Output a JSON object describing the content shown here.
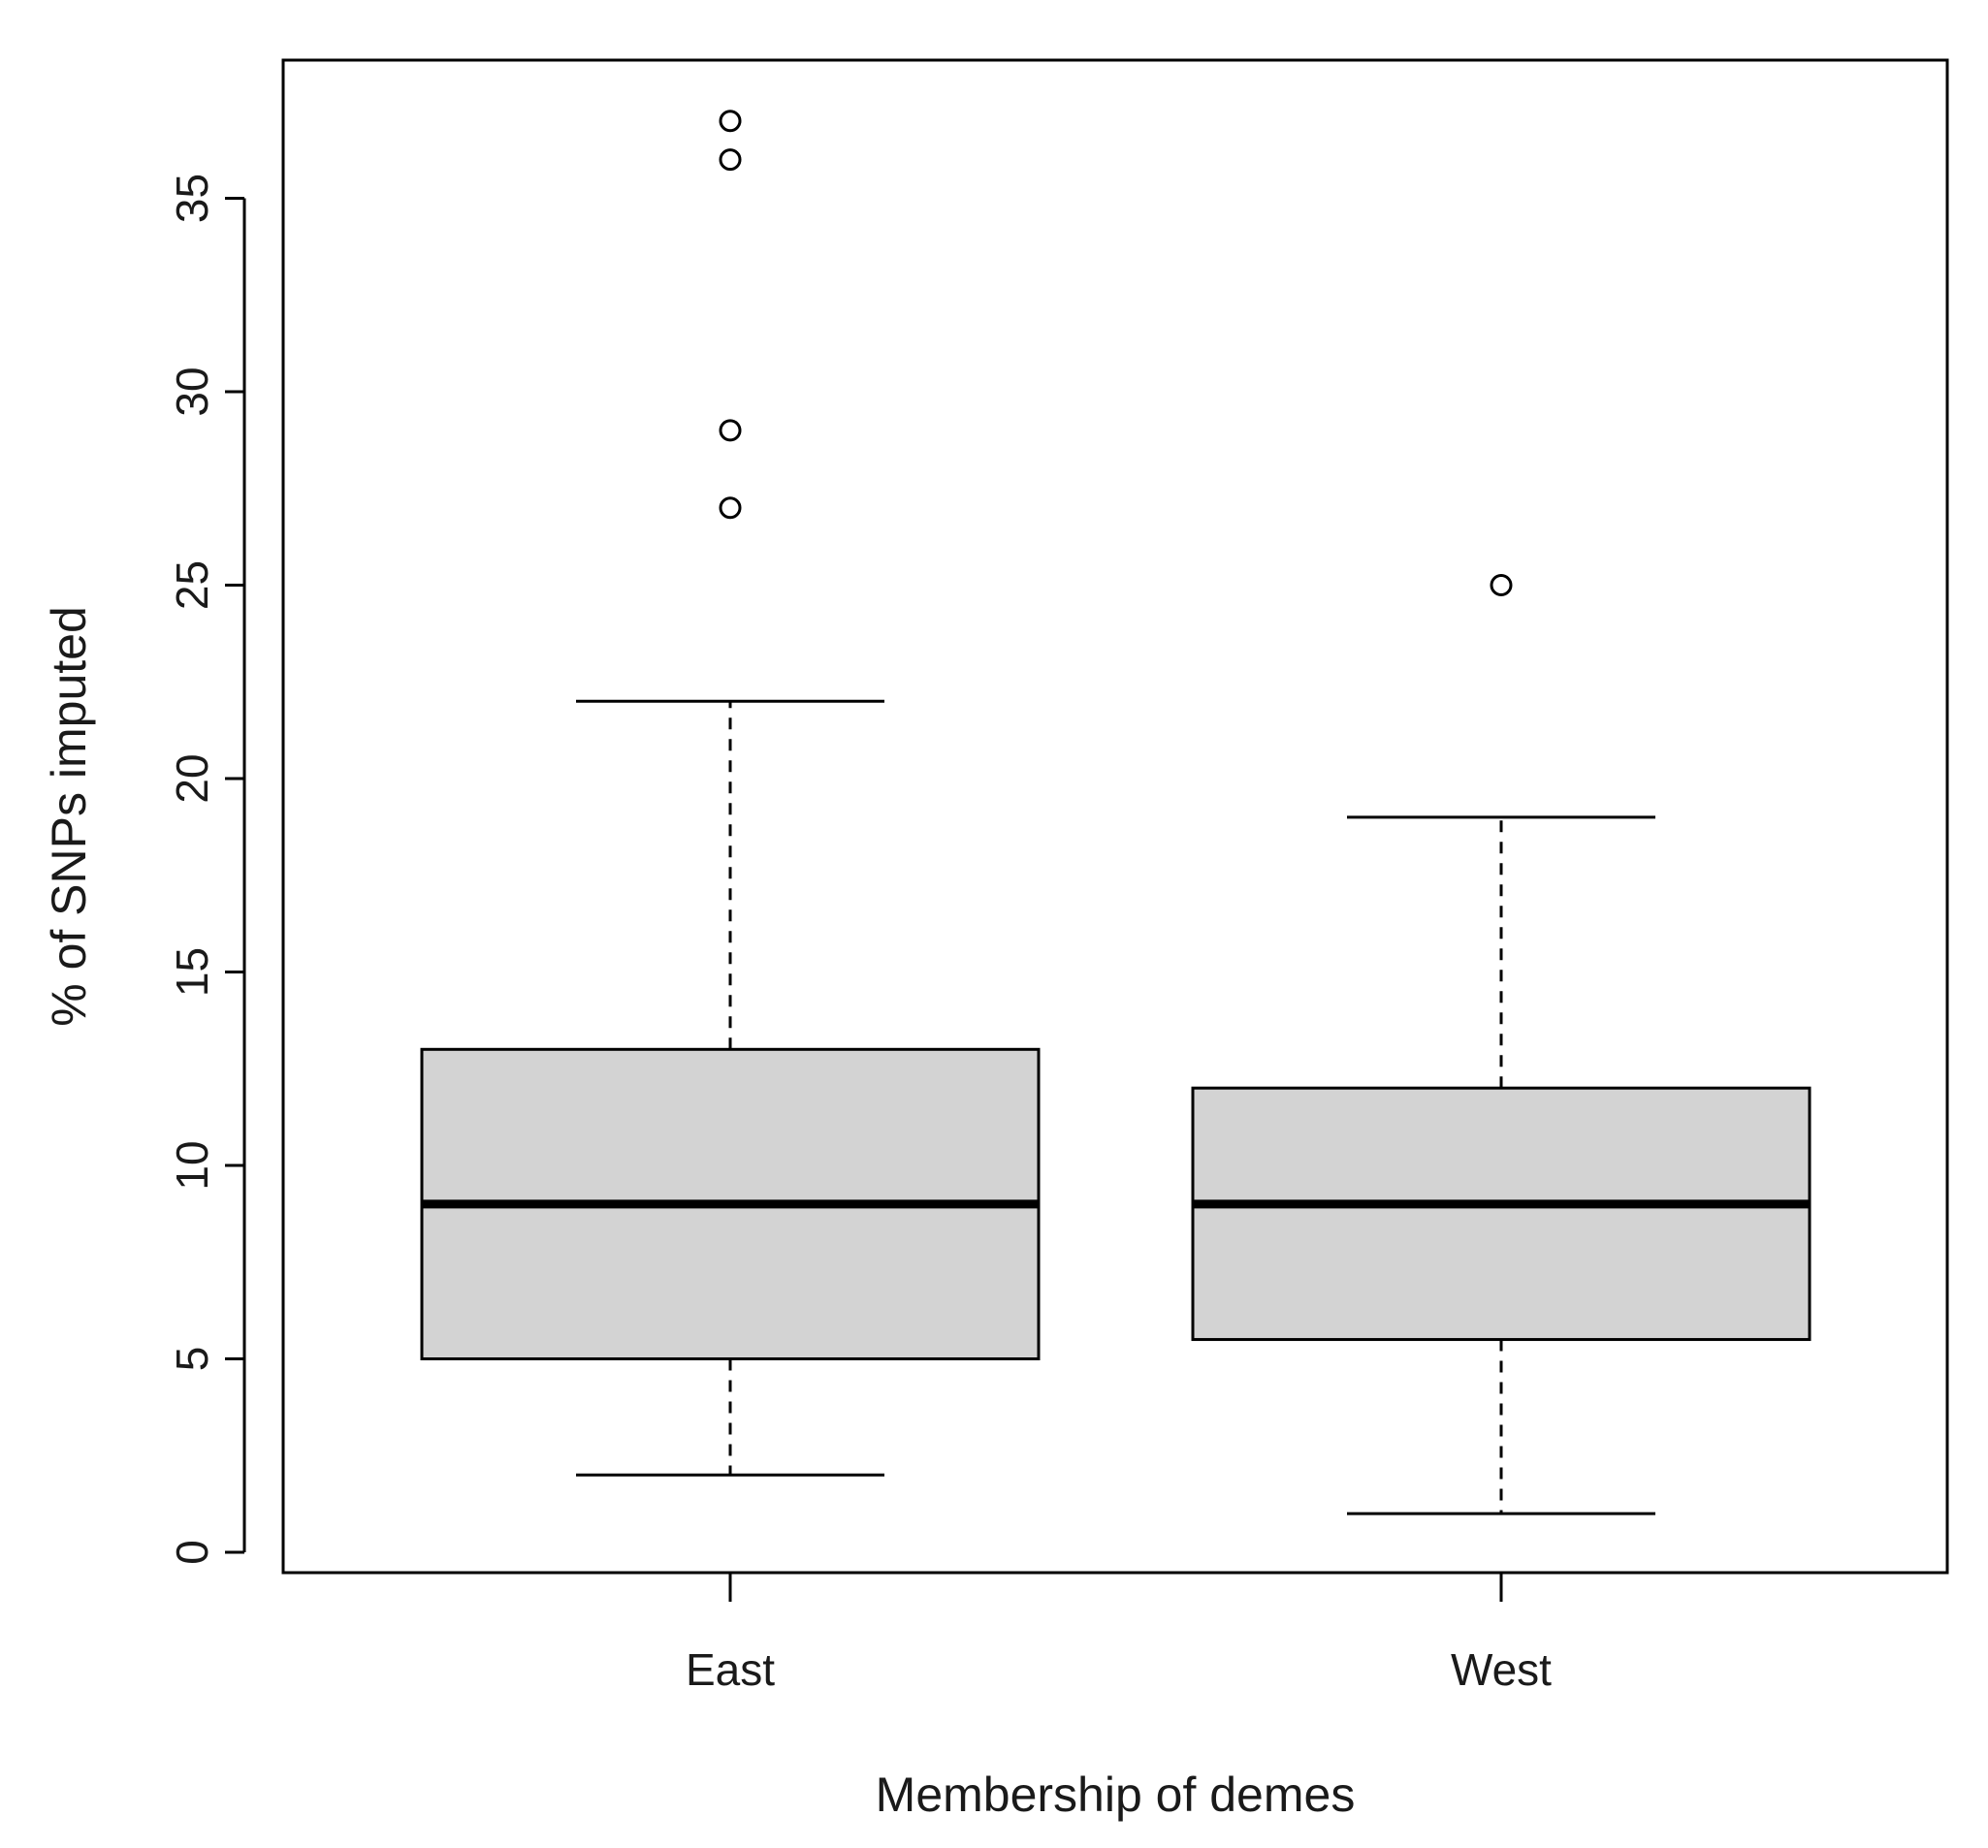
{
  "chart_data": {
    "type": "box",
    "xlabel": "Membership of demes",
    "ylabel": "% of SNPs imputed",
    "ylim": [
      0,
      37
    ],
    "yticks": [
      0,
      5,
      10,
      15,
      20,
      25,
      30,
      35
    ],
    "categories": [
      "East",
      "West"
    ],
    "boxes": [
      {
        "category": "East",
        "whisker_low": 2,
        "q1": 5,
        "median": 9,
        "q3": 13,
        "whisker_high": 22,
        "outliers": [
          27,
          29,
          36,
          37
        ]
      },
      {
        "category": "West",
        "whisker_low": 1,
        "q1": 5.5,
        "median": 9,
        "q3": 12,
        "whisker_high": 19,
        "outliers": [
          25
        ]
      }
    ],
    "box_fill": "#d3d3d3",
    "line_color": "#000000",
    "grid": false,
    "legend": "none"
  }
}
